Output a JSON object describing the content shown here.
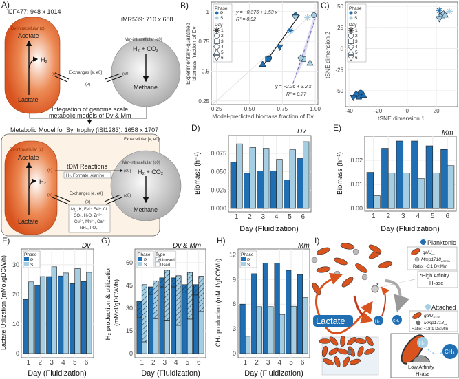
{
  "panels": {
    "A": "A)",
    "B": "B)",
    "C": "C)",
    "D": "D)",
    "E": "E)",
    "F": "F)",
    "G": "G)",
    "H": "H)",
    "I": "I)"
  },
  "colors": {
    "P": "#1f6fb2",
    "S": "#a6cee3",
    "orange": "#d9531e",
    "grid": "#ebebeb"
  },
  "panelA": {
    "dv_model": "iJF477: 948 x 1014",
    "mm_model": "iMR539: 710 x 688",
    "dv_intra": "Dv-intracellular (c)",
    "mm_intra": "Mm-intracellular (c0)",
    "acetate": "Acetate",
    "h2": "H₂",
    "lactate": "Lactate",
    "h2co2": "H₂ + CO₂",
    "methane": "Methane",
    "c": "(c)",
    "c0": "(c0)",
    "e": "(e)",
    "exchanges": "Exchanges [e, e0]",
    "integration1": "Integration of genome scale",
    "integration2": "metabolic models of Dv & Mm",
    "syntrophy_title": "Metabolic Model for Syntrophy (iSI1283): 1658 x 1707",
    "extracellular": "Extracellular [e, e0]",
    "tdm": "tDM Reactions",
    "tdm_metabolites": "H₂, Formate, Alanine",
    "exchange_list": [
      "Mg, K, Fe²⁺ Fe³⁺ Cl",
      "CO₂, H₂O, Zn²⁺",
      "Cu²⁺, Mn²⁺, Ca²⁺",
      "NH₄, PO₄"
    ]
  },
  "legend": {
    "phase": "Phase",
    "p": "P",
    "s": "S",
    "day": "Day",
    "type": "Type",
    "unused": "Unused",
    "used": "Used",
    "days": [
      "1",
      "2",
      "3",
      "4",
      "5",
      "6"
    ]
  },
  "chart_data": [
    {
      "id": "B",
      "type": "scatter",
      "xlabel": "Model-predicted biomass fraction of Dv",
      "ylabel": "Experimentally-quantified biomass fraction of Dv",
      "xlim": [
        0.21,
        1.02
      ],
      "ylim": [
        0.22,
        1.08
      ],
      "xticks": [
        0.25,
        0.5,
        0.75,
        1.0
      ],
      "yticks": [
        0.25,
        0.5,
        0.75,
        1.0
      ],
      "series": [
        {
          "name": "P",
          "points": [
            {
              "day": 1,
              "x": 0.81,
              "y": 0.84
            },
            {
              "day": 2,
              "x": 0.65,
              "y": 0.61
            },
            {
              "day": 3,
              "x": 0.64,
              "y": 0.6
            },
            {
              "day": 4,
              "x": 0.85,
              "y": 0.97
            },
            {
              "day": 5,
              "x": 0.6,
              "y": 0.56
            },
            {
              "day": 6,
              "x": 0.73,
              "y": 0.7
            }
          ]
        },
        {
          "name": "S",
          "points": [
            {
              "day": 1,
              "x": 0.94,
              "y": 0.95
            },
            {
              "day": 2,
              "x": 0.99,
              "y": 0.97
            },
            {
              "day": 3,
              "x": 0.91,
              "y": 0.6
            },
            {
              "day": 4,
              "x": 0.89,
              "y": 0.61
            },
            {
              "day": 5,
              "x": 0.96,
              "y": 0.57
            },
            {
              "day": 6,
              "x": 0.85,
              "y": 0.95
            }
          ]
        }
      ],
      "fits": [
        {
          "series": "P",
          "eq": "y = −0.376 + 1.53 x",
          "r2": "R² = 0.92",
          "intercept": -0.376,
          "slope": 1.53,
          "xrange": [
            0.6,
            0.88
          ]
        },
        {
          "series": "S",
          "eq": "y = −2.26 + 3.2 x",
          "r2": "R² = 0.77",
          "intercept": -2.26,
          "slope": 3.2,
          "xrange": [
            0.83,
            1.0
          ]
        }
      ]
    },
    {
      "id": "C",
      "type": "scatter",
      "xlabel": "tSNE dimension 1",
      "ylabel": "tSNE dimension 2",
      "xlim": [
        -42.4,
        34.6
      ],
      "ylim": [
        -68.7,
        54.9
      ],
      "xticks": [
        -40,
        -20,
        0,
        20
      ],
      "yticks": [
        -50,
        -25,
        0,
        25,
        50
      ],
      "series": [
        {
          "name": "P",
          "points": [
            {
              "day": 1,
              "x": 22,
              "y": 45
            },
            {
              "day": 2,
              "x": -32,
              "y": -52
            },
            {
              "day": 3,
              "x": -33,
              "y": -57
            },
            {
              "day": 4,
              "x": -35,
              "y": -54
            },
            {
              "day": 5,
              "x": -30,
              "y": -55
            },
            {
              "day": 6,
              "x": -37,
              "y": -58
            }
          ]
        },
        {
          "name": "S",
          "points": [
            {
              "day": 1,
              "x": 29,
              "y": 44
            },
            {
              "day": 2,
              "x": 23,
              "y": 39
            },
            {
              "day": 3,
              "x": 24,
              "y": 38
            },
            {
              "day": 4,
              "x": 25,
              "y": 41
            },
            {
              "day": 5,
              "x": 26,
              "y": 40
            },
            {
              "day": 6,
              "x": 22,
              "y": 35
            }
          ]
        }
      ]
    },
    {
      "id": "D",
      "type": "bar",
      "title": "Dv",
      "xlabel": "Day (Fluidization)",
      "ylabel": "Biomass (h⁻¹)",
      "categories": [
        "1",
        "2",
        "3",
        "4",
        "5",
        "6"
      ],
      "ylim": [
        -0.0047,
        0.0994
      ],
      "yticks": [
        "0.000",
        "0.025",
        "0.050",
        "0.075"
      ],
      "series": [
        {
          "name": "P",
          "values": [
            0.063,
            0.048,
            0.051,
            0.051,
            0.039,
            0.068
          ]
        },
        {
          "name": "S",
          "values": [
            0.088,
            0.083,
            0.082,
            0.067,
            0.08,
            0.091
          ]
        }
      ]
    },
    {
      "id": "E",
      "type": "bar",
      "title": "Mm",
      "xlabel": "Day (Fluidization)",
      "ylabel": "Biomass (h⁻¹)",
      "categories": [
        "1",
        "2",
        "3",
        "4",
        "5",
        "6"
      ],
      "ylim": [
        -0.0011,
        0.03
      ],
      "yticks": [
        "0.00",
        "0.01",
        "0.02"
      ],
      "series": [
        {
          "name": "P",
          "values": [
            0.015,
            0.025,
            0.028,
            0.028,
            0.026,
            0.0245
          ]
        },
        {
          "name": "S",
          "values": [
            0.0053,
            0.0147,
            0.0147,
            0.0124,
            0.0147,
            0.0178
          ]
        }
      ]
    },
    {
      "id": "F",
      "type": "bar",
      "title": "Dv",
      "xlabel": "Day (Fluidization)",
      "ylabel": "Lactate Utilization (mMol/gDCW/h)",
      "categories": [
        "1",
        "2",
        "3",
        "4",
        "5",
        "6"
      ],
      "ylim": [
        -1.4,
        35.3
      ],
      "yticks": [
        "0",
        "10",
        "20",
        "30"
      ],
      "series": [
        {
          "name": "P",
          "values": [
            18.3,
            23.0,
            26.0,
            26.2,
            23.6,
            24.3
          ]
        },
        {
          "name": "S",
          "values": [
            24.2,
            26.0,
            29.3,
            27.2,
            28.7,
            27.4
          ]
        }
      ]
    },
    {
      "id": "G",
      "type": "bar",
      "title": "Dv & Mm",
      "xlabel": "Day (Fluidization)",
      "ylabel": "H₂ production & utilization",
      "ylabel2": "(mMol/gDCW/h)",
      "categories": [
        "1",
        "2",
        "3",
        "4",
        "5",
        "6"
      ],
      "ylim": [
        -2.7,
        69
      ],
      "yticks": [
        "0",
        "15",
        "30",
        "45",
        "60"
      ],
      "series": [
        {
          "name": "P",
          "total": [
            34.5,
            44.0,
            50.0,
            50.0,
            45.5,
            45.5
          ],
          "used": [
            23.6,
            39.0,
            44.0,
            44.0,
            40.5,
            38.6
          ]
        },
        {
          "name": "S",
          "total": [
            45.5,
            48.0,
            55.0,
            51.4,
            53.6,
            51.0
          ],
          "used": [
            7.7,
            23.0,
            22.0,
            18.6,
            22.7,
            27.7
          ]
        }
      ]
    },
    {
      "id": "H",
      "type": "bar",
      "title": "Mm",
      "xlabel": "Day (Fluidization)",
      "ylabel": "CH₄ production (mMol/gDCW/h)",
      "categories": [
        "1",
        "2",
        "3",
        "4",
        "5",
        "6"
      ],
      "ylim": [
        -0.5,
        12.7
      ],
      "yticks": [
        "0",
        "3",
        "6",
        "9",
        "12"
      ],
      "series": [
        {
          "name": "P",
          "values": [
            6.0,
            9.7,
            11.0,
            11.0,
            10.1,
            9.6
          ]
        },
        {
          "name": "S",
          "values": [
            2.1,
            5.7,
            5.7,
            4.75,
            5.75,
            6.8
          ]
        }
      ]
    }
  ],
  "panelI": {
    "planktonic": "Planktonic",
    "attached": "Attached",
    "plank_dv": "galU",
    "plank_dv_sub": "wt",
    "plank_mm": "Mmp1718",
    "plank_mm_sub": "ΔR26fs",
    "plank_ratio": "Ratio: ~3:1 Dv:Mm",
    "att_dv": "galU",
    "att_dv_sub": "P22S",
    "att_mm": "Mmp1718",
    "att_mm_sub": "wt",
    "att_ratio": "Ratio: ~18:1 Dv:Mm",
    "high1": "*High Affinity",
    "high2": "H₂ase",
    "low1": "Low Affinity",
    "low2": "H₂ase",
    "lactate": "Lactate",
    "h2": "H₂",
    "ch4": "CH₄",
    "star": "*"
  }
}
